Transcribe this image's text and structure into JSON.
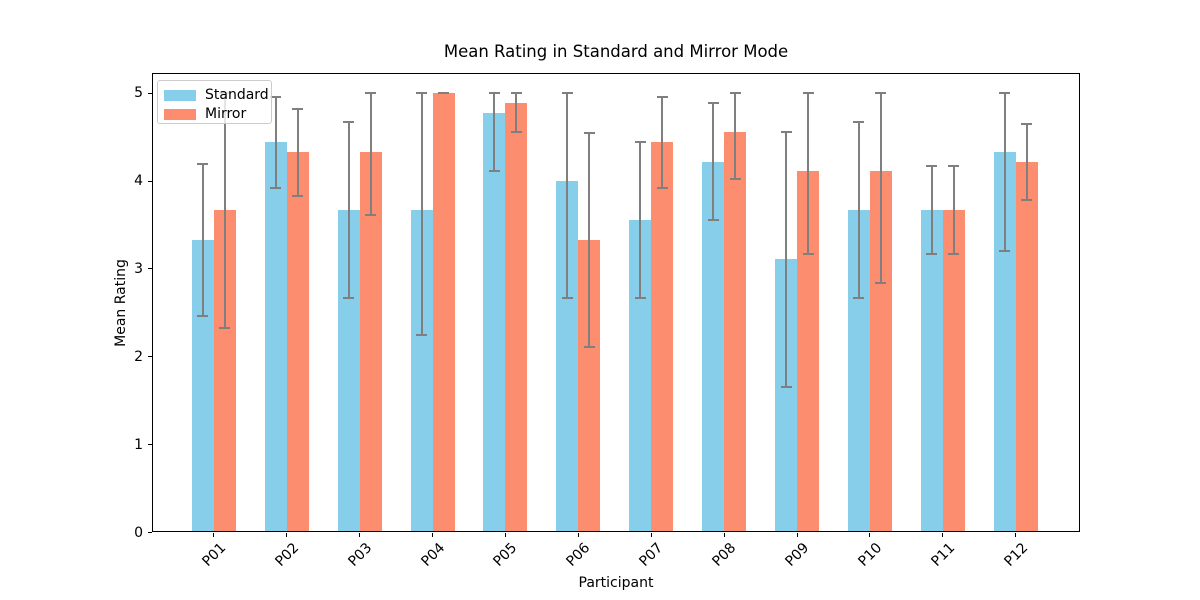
{
  "figure": {
    "title": "Mean Rating in Standard and Mirror Mode",
    "xlabel": "Participant",
    "ylabel": "Mean Rating",
    "background": "#ffffff",
    "spine_color": "#000000"
  },
  "chart_data": {
    "type": "bar",
    "title": "Mean Rating in Standard and Mirror Mode",
    "xlabel": "Participant",
    "ylabel": "Mean Rating",
    "categories": [
      "P01",
      "P02",
      "P03",
      "P04",
      "P05",
      "P06",
      "P07",
      "P08",
      "P09",
      "P10",
      "P11",
      "P12"
    ],
    "yticks": [
      "0",
      "1",
      "2",
      "3",
      "4",
      "5"
    ],
    "ylim": [
      0,
      5.23
    ],
    "grid": false,
    "legend_position": "upper left",
    "error_color": "#7f7f7f",
    "series": [
      {
        "name": "Standard",
        "color": "#87CEEB",
        "values": [
          3.33,
          4.44,
          3.67,
          3.67,
          4.78,
          4.0,
          3.56,
          4.22,
          3.11,
          3.67,
          3.67,
          4.33
        ],
        "err_upper": [
          4.2,
          4.96,
          4.67,
          5.0,
          5.0,
          5.0,
          4.44,
          4.89,
          4.56,
          4.67,
          4.17,
          5.0
        ],
        "err_lower": [
          2.47,
          3.92,
          2.67,
          2.25,
          4.11,
          2.67,
          2.67,
          3.56,
          1.66,
          2.67,
          3.17,
          3.21
        ]
      },
      {
        "name": "Mirror",
        "color": "#FC8D6F",
        "values": [
          3.67,
          4.33,
          4.33,
          5.0,
          4.89,
          3.33,
          4.44,
          4.56,
          4.11,
          4.11,
          3.67,
          4.22
        ],
        "err_upper": [
          5.0,
          4.82,
          5.0,
          5.0,
          5.0,
          4.55,
          4.96,
          5.0,
          5.0,
          5.0,
          4.17,
          4.65
        ],
        "err_lower": [
          2.33,
          3.83,
          3.62,
          5.0,
          4.56,
          2.11,
          3.92,
          4.03,
          3.17,
          2.84,
          3.17,
          3.78
        ]
      }
    ]
  }
}
